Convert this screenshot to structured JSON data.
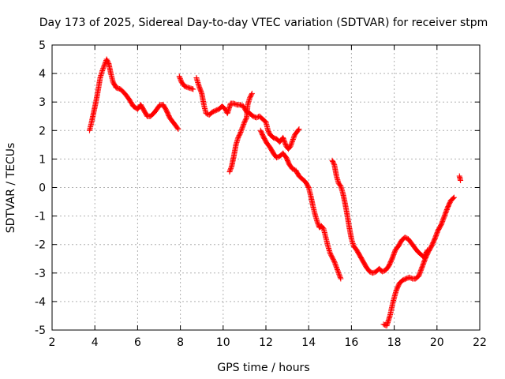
{
  "chart_data": {
    "type": "scatter",
    "title": "Day 173 of 2025, Sidereal Day-to-day VTEC variation (SDTVAR) for receiver stpm",
    "xlabel": "GPS time / hours",
    "ylabel": "SDTVAR / TECUs",
    "xlim": [
      2,
      22
    ],
    "ylim": [
      -5,
      5
    ],
    "xticks": [
      "2",
      "4",
      "6",
      "8",
      "10",
      "12",
      "14",
      "16",
      "18",
      "20",
      "22"
    ],
    "yticks": [
      "-5",
      "-4",
      "-3",
      "-2",
      "-1",
      "0",
      "1",
      "2",
      "3",
      "4",
      "5"
    ],
    "grid": true,
    "marker": "+",
    "color": "#ff0000",
    "segments": [
      [
        [
          3.75,
          2.0
        ],
        [
          3.85,
          2.3
        ],
        [
          3.95,
          2.65
        ],
        [
          4.05,
          3.0
        ],
        [
          4.15,
          3.4
        ],
        [
          4.25,
          3.85
        ],
        [
          4.35,
          4.1
        ],
        [
          4.45,
          4.3
        ],
        [
          4.55,
          4.5
        ],
        [
          4.65,
          4.35
        ],
        [
          4.75,
          4.0
        ],
        [
          4.85,
          3.7
        ],
        [
          5.0,
          3.5
        ],
        [
          5.2,
          3.45
        ],
        [
          5.4,
          3.3
        ],
        [
          5.6,
          3.1
        ],
        [
          5.8,
          2.85
        ],
        [
          6.0,
          2.75
        ],
        [
          6.15,
          2.9
        ],
        [
          6.3,
          2.7
        ],
        [
          6.45,
          2.5
        ],
        [
          6.6,
          2.5
        ],
        [
          6.75,
          2.6
        ],
        [
          6.9,
          2.75
        ],
        [
          7.05,
          2.9
        ],
        [
          7.2,
          2.9
        ],
        [
          7.35,
          2.7
        ],
        [
          7.5,
          2.45
        ],
        [
          7.65,
          2.3
        ],
        [
          7.8,
          2.15
        ],
        [
          7.9,
          2.05
        ]
      ],
      [
        [
          7.95,
          3.9
        ],
        [
          8.05,
          3.7
        ],
        [
          8.2,
          3.55
        ],
        [
          8.4,
          3.5
        ],
        [
          8.6,
          3.45
        ]
      ],
      [
        [
          8.75,
          3.85
        ],
        [
          8.85,
          3.6
        ],
        [
          9.0,
          3.3
        ],
        [
          9.1,
          2.9
        ],
        [
          9.2,
          2.6
        ],
        [
          9.35,
          2.55
        ],
        [
          9.5,
          2.65
        ],
        [
          9.65,
          2.7
        ],
        [
          9.8,
          2.75
        ],
        [
          9.95,
          2.85
        ],
        [
          10.1,
          2.75
        ],
        [
          10.2,
          2.6
        ],
        [
          10.35,
          2.95
        ],
        [
          10.5,
          2.95
        ],
        [
          10.65,
          2.9
        ],
        [
          10.8,
          2.9
        ],
        [
          10.95,
          2.85
        ],
        [
          11.1,
          2.65
        ],
        [
          11.25,
          2.6
        ],
        [
          11.4,
          2.5
        ],
        [
          11.55,
          2.45
        ],
        [
          11.7,
          2.5
        ],
        [
          11.85,
          2.4
        ],
        [
          12.0,
          2.3
        ],
        [
          12.1,
          2.0
        ],
        [
          12.2,
          1.85
        ]
      ],
      [
        [
          10.3,
          0.55
        ],
        [
          10.4,
          0.75
        ],
        [
          10.5,
          1.1
        ],
        [
          10.6,
          1.5
        ],
        [
          10.7,
          1.75
        ],
        [
          10.8,
          1.9
        ],
        [
          10.9,
          2.1
        ],
        [
          11.0,
          2.3
        ],
        [
          11.1,
          2.45
        ],
        [
          11.15,
          2.9
        ],
        [
          11.25,
          3.15
        ],
        [
          11.35,
          3.3
        ]
      ],
      [
        [
          11.75,
          2.0
        ],
        [
          11.9,
          1.75
        ],
        [
          12.05,
          1.55
        ],
        [
          12.2,
          1.4
        ],
        [
          12.35,
          1.2
        ],
        [
          12.5,
          1.05
        ],
        [
          12.65,
          1.1
        ],
        [
          12.8,
          1.2
        ],
        [
          12.95,
          1.05
        ],
        [
          13.1,
          0.8
        ],
        [
          13.25,
          0.65
        ],
        [
          13.4,
          0.6
        ],
        [
          13.55,
          0.4
        ],
        [
          13.7,
          0.3
        ],
        [
          13.85,
          0.2
        ],
        [
          14.0,
          0.0
        ],
        [
          14.1,
          -0.3
        ],
        [
          14.2,
          -0.65
        ],
        [
          14.3,
          -0.95
        ],
        [
          14.4,
          -1.2
        ],
        [
          14.5,
          -1.4
        ],
        [
          14.6,
          -1.35
        ],
        [
          14.7,
          -1.45
        ],
        [
          14.8,
          -1.75
        ],
        [
          14.9,
          -2.05
        ],
        [
          15.0,
          -2.3
        ],
        [
          15.1,
          -2.45
        ],
        [
          15.2,
          -2.6
        ],
        [
          15.3,
          -2.8
        ],
        [
          15.4,
          -3.0
        ],
        [
          15.5,
          -3.2
        ]
      ],
      [
        [
          12.2,
          1.85
        ],
        [
          12.35,
          1.75
        ],
        [
          12.5,
          1.7
        ],
        [
          12.65,
          1.6
        ],
        [
          12.8,
          1.75
        ],
        [
          12.95,
          1.45
        ],
        [
          13.05,
          1.35
        ],
        [
          13.15,
          1.45
        ],
        [
          13.25,
          1.65
        ],
        [
          13.35,
          1.85
        ],
        [
          13.45,
          1.95
        ],
        [
          13.55,
          2.05
        ]
      ],
      [
        [
          15.1,
          0.95
        ],
        [
          15.2,
          0.8
        ],
        [
          15.3,
          0.4
        ],
        [
          15.4,
          0.15
        ],
        [
          15.5,
          0.05
        ],
        [
          15.6,
          -0.2
        ],
        [
          15.7,
          -0.55
        ],
        [
          15.8,
          -0.95
        ],
        [
          15.9,
          -1.4
        ],
        [
          16.0,
          -1.8
        ],
        [
          16.1,
          -2.05
        ],
        [
          16.25,
          -2.2
        ],
        [
          16.4,
          -2.4
        ],
        [
          16.55,
          -2.6
        ],
        [
          16.7,
          -2.8
        ],
        [
          16.85,
          -2.95
        ],
        [
          17.0,
          -3.0
        ],
        [
          17.15,
          -2.95
        ],
        [
          17.3,
          -2.85
        ],
        [
          17.45,
          -2.95
        ],
        [
          17.6,
          -2.9
        ],
        [
          17.75,
          -2.75
        ],
        [
          17.9,
          -2.5
        ],
        [
          18.05,
          -2.2
        ],
        [
          18.2,
          -2.05
        ],
        [
          18.35,
          -1.85
        ],
        [
          18.5,
          -1.75
        ],
        [
          18.65,
          -1.8
        ],
        [
          18.8,
          -1.95
        ],
        [
          18.95,
          -2.1
        ],
        [
          19.1,
          -2.25
        ],
        [
          19.25,
          -2.35
        ],
        [
          19.4,
          -2.45
        ],
        [
          19.55,
          -2.2
        ]
      ],
      [
        [
          17.5,
          -4.8
        ],
        [
          17.65,
          -4.85
        ],
        [
          17.8,
          -4.5
        ],
        [
          17.95,
          -4.0
        ],
        [
          18.1,
          -3.6
        ],
        [
          18.25,
          -3.35
        ],
        [
          18.4,
          -3.25
        ],
        [
          18.55,
          -3.2
        ],
        [
          18.7,
          -3.15
        ],
        [
          18.85,
          -3.2
        ],
        [
          19.0,
          -3.2
        ],
        [
          19.15,
          -3.1
        ],
        [
          19.3,
          -2.8
        ],
        [
          19.45,
          -2.5
        ],
        [
          19.6,
          -2.25
        ],
        [
          19.75,
          -2.05
        ],
        [
          19.9,
          -1.8
        ],
        [
          20.05,
          -1.5
        ],
        [
          20.2,
          -1.3
        ],
        [
          20.35,
          -1.0
        ],
        [
          20.5,
          -0.7
        ],
        [
          20.65,
          -0.45
        ],
        [
          20.8,
          -0.35
        ]
      ],
      [
        [
          21.05,
          0.4
        ],
        [
          21.1,
          0.25
        ]
      ]
    ]
  }
}
